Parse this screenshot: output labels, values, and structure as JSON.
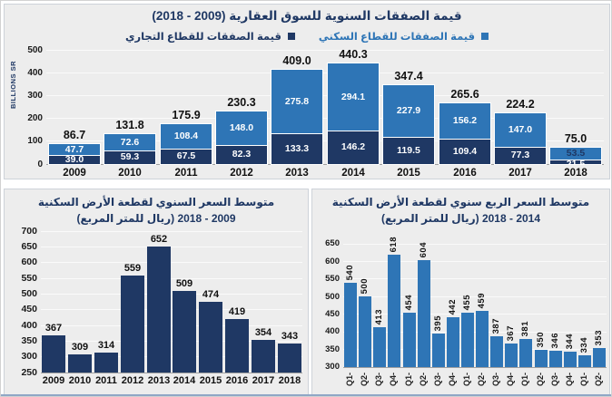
{
  "colors": {
    "navy": "#1f3864",
    "blue": "#2e75b6",
    "panel_bg": "#ededed",
    "grid": "#fafafa",
    "axis": "#a0a0a0",
    "label": "#1a1a1a",
    "frame_bottom": "#8fa7c6"
  },
  "chart_data": [
    {
      "type": "bar",
      "subtype": "stacked",
      "title": "قيمة الصفقات السنوية للسوق العقارية (2009 - 2018)",
      "ylabel": "BILLIONS SR",
      "categories": [
        "2009",
        "2010",
        "2011",
        "2012",
        "2013",
        "2014",
        "2015",
        "2016",
        "2017",
        "2018"
      ],
      "series": [
        {
          "name": "قيمة الصفقات للقطاع السكني",
          "color": "#2e75b6",
          "values": [
            "47.7",
            "72.6",
            "108.4",
            "148.0",
            "275.8",
            "294.1",
            "227.9",
            "156.2",
            "147.0",
            "53.5"
          ]
        },
        {
          "name": "قيمة الصفقات للقطاع التجاري",
          "color": "#1f3864",
          "values": [
            "39.0",
            "59.3",
            "67.5",
            "82.3",
            "133.3",
            "146.2",
            "119.5",
            "109.4",
            "77.3",
            "21.5"
          ]
        }
      ],
      "totals": [
        "86.7",
        "131.8",
        "175.9",
        "230.3",
        "409.0",
        "440.3",
        "347.4",
        "265.6",
        "224.2",
        "75.0"
      ],
      "ylim": [
        0,
        500
      ],
      "yticks": [
        0,
        100,
        200,
        300,
        400,
        500
      ],
      "grid": true,
      "legend_position": "top"
    },
    {
      "type": "bar",
      "title": "متوسط السعر السنوي لقطعة الأرض السكنية (ريال للمتر المربع) 2009 - 2018",
      "title_line1": "متوسط السعر السنوي لقطعة الأرض السكنية",
      "title_line2": "(ريال للمتر المربع) 2009 - 2018",
      "categories": [
        "2009",
        "2010",
        "2011",
        "2012",
        "2013",
        "2014",
        "2015",
        "2016",
        "2017",
        "2018"
      ],
      "values": [
        367,
        309,
        314,
        559,
        652,
        509,
        474,
        419,
        354,
        343
      ],
      "bar_color": "#1f3864",
      "ylim": [
        250,
        700
      ],
      "yticks": [
        250,
        300,
        350,
        400,
        450,
        500,
        550,
        600,
        650,
        700
      ],
      "grid": true
    },
    {
      "type": "bar",
      "title": "متوسط السعر الربع سنوي لقطعة الأرض السكنية (ريال للمتر المربع) 2014 - 2018",
      "title_line1": "متوسط السعر الربع سنوي لقطعة الأرض السكنية",
      "title_line2": "(ريال للمتر المربع) 2014 - 2018",
      "categories": [
        "Q1-",
        "Q2-",
        "Q3-",
        "Q4-",
        "Q1-",
        "Q2-",
        "Q3-",
        "Q4-",
        "Q1-",
        "Q2-",
        "Q3-",
        "Q4-",
        "Q1-",
        "Q2-",
        "Q3-",
        "Q4-",
        "Q1-",
        "Q2-"
      ],
      "values": [
        540,
        500,
        413,
        618,
        454,
        604,
        395,
        442,
        455,
        459,
        387,
        367,
        381,
        350,
        346,
        344,
        334,
        353
      ],
      "bar_color": "#2e75b6",
      "ylim": [
        300,
        650
      ],
      "yticks": [
        300,
        350,
        400,
        450,
        500,
        550,
        600,
        650
      ],
      "grid": true,
      "value_labels_rotated": true,
      "x_labels_rotated": true
    }
  ]
}
